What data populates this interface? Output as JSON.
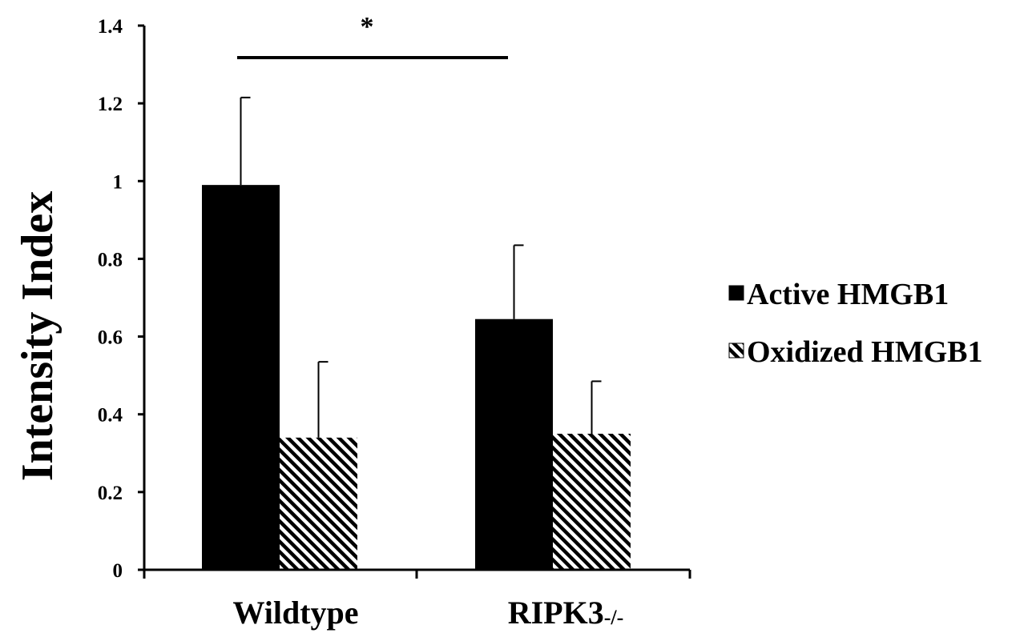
{
  "chart_data": {
    "type": "bar",
    "title": "",
    "xlabel": "",
    "ylabel": "Intensity Index",
    "ylim": [
      0,
      1.4
    ],
    "yticks": [
      "0",
      "0.2",
      "0.4",
      "0.6",
      "0.8",
      "1",
      "1.2",
      "1.4"
    ],
    "categories": [
      "Wildtype",
      "RIPK3-/-"
    ],
    "category_parts": [
      {
        "main": "Wildtype",
        "suffix": ""
      },
      {
        "main": "RIPK3",
        "suffix": "-/-"
      }
    ],
    "series": [
      {
        "name": "Active HMGB1",
        "fill": "solid",
        "color": "#000000",
        "values": [
          0.99,
          0.645
        ],
        "errors": [
          0.225,
          0.19
        ]
      },
      {
        "name": "Oxidized HMGB1",
        "fill": "hatched",
        "color": "#000000",
        "values": [
          0.34,
          0.35
        ],
        "errors": [
          0.195,
          0.135
        ]
      }
    ],
    "legend_position": "right",
    "grid": false,
    "significance": {
      "label": "*",
      "between": [
        "Wildtype Active HMGB1",
        "RIPK3-/- Active HMGB1"
      ],
      "y": 1.32
    }
  }
}
